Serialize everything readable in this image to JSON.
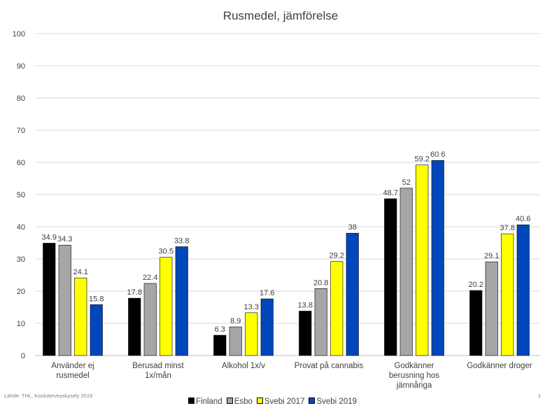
{
  "chart_data": {
    "type": "bar",
    "title": "Rusmedel, jämförelse",
    "categories": [
      [
        "Använder ej",
        "rusmedel"
      ],
      [
        "Berusad minst",
        "1x/mån"
      ],
      [
        "Alkohol 1x/v"
      ],
      [
        "Provat på cannabis"
      ],
      [
        "Godkänner",
        "berusning hos",
        "jämnåriga"
      ],
      [
        "Godkänner droger"
      ]
    ],
    "series": [
      {
        "name": "Finland",
        "color": "#000000",
        "values": [
          34.9,
          17.8,
          6.3,
          13.8,
          48.7,
          20.2
        ]
      },
      {
        "name": "Esbo",
        "color": "#a6a6a6",
        "values": [
          34.3,
          22.4,
          8.9,
          20.8,
          52,
          29.1
        ]
      },
      {
        "name": "Svebi 2017",
        "color": "#ffff00",
        "values": [
          24.1,
          30.5,
          13.3,
          29.2,
          59.2,
          37.8
        ]
      },
      {
        "name": "Svebi 2019",
        "color": "#0047bb",
        "values": [
          15.8,
          33.8,
          17.6,
          38,
          60.6,
          40.6
        ]
      }
    ],
    "ylim": [
      0,
      100
    ],
    "yticks": [
      0,
      10,
      20,
      30,
      40,
      50,
      60,
      70,
      80,
      90,
      100
    ],
    "grid": true,
    "legend_position": "bottom"
  },
  "footer": {
    "source": "Lähde: THL, Kouluterveyskysely 2019",
    "page_number": "1"
  }
}
